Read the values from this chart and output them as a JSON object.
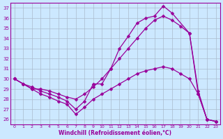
{
  "color": "#990099",
  "bg_color": "#cce8ff",
  "grid_color": "#aabbcc",
  "ylim": [
    25.5,
    37.5
  ],
  "yticks": [
    26,
    27,
    28,
    29,
    30,
    31,
    32,
    33,
    34,
    35,
    36,
    37
  ],
  "xlim": [
    -0.5,
    23.5
  ],
  "x_labels": [
    0,
    1,
    2,
    3,
    4,
    5,
    6,
    7,
    8,
    9,
    10,
    11,
    12,
    13,
    14,
    15,
    16,
    17,
    18,
    19,
    20,
    21,
    22,
    23
  ],
  "xlabel": "Windchill (Refroidissement éolien,°C)",
  "line1_x": [
    0,
    1,
    2,
    3,
    4,
    5,
    6,
    7,
    8,
    9,
    10,
    11,
    12,
    13,
    14,
    15,
    16,
    17,
    18,
    20,
    21,
    22,
    23
  ],
  "line1_y": [
    30.0,
    29.5,
    29.2,
    28.8,
    28.5,
    28.2,
    27.8,
    27.0,
    27.8,
    29.5,
    29.5,
    31.0,
    33.0,
    34.2,
    35.5,
    36.0,
    36.2,
    37.2,
    36.5,
    34.5,
    28.8,
    26.0,
    25.8
  ],
  "line2_x": [
    0,
    1,
    2,
    3,
    4,
    5,
    6,
    7,
    8,
    9,
    10,
    11,
    12,
    13,
    14,
    15,
    16,
    17,
    18,
    19,
    20,
    21,
    22,
    23
  ],
  "line2_y": [
    30.0,
    29.5,
    29.0,
    29.0,
    28.8,
    28.5,
    28.2,
    28.0,
    28.5,
    29.2,
    30.0,
    31.0,
    32.0,
    33.0,
    34.0,
    35.0,
    35.8,
    36.2,
    35.8,
    35.2,
    34.5,
    28.5,
    26.0,
    25.8
  ],
  "line3_x": [
    0,
    1,
    2,
    3,
    4,
    5,
    6,
    7,
    8,
    9,
    10,
    11,
    12,
    13,
    14,
    15,
    16,
    17,
    18,
    19,
    20,
    21,
    22,
    23
  ],
  "line3_y": [
    30.0,
    29.5,
    29.0,
    28.5,
    28.2,
    27.8,
    27.5,
    26.5,
    27.2,
    28.0,
    28.5,
    29.0,
    29.5,
    30.0,
    30.5,
    30.8,
    31.0,
    31.2,
    31.0,
    30.5,
    30.0,
    28.5,
    26.0,
    25.8
  ],
  "markersize": 2.5,
  "linewidth": 0.9
}
